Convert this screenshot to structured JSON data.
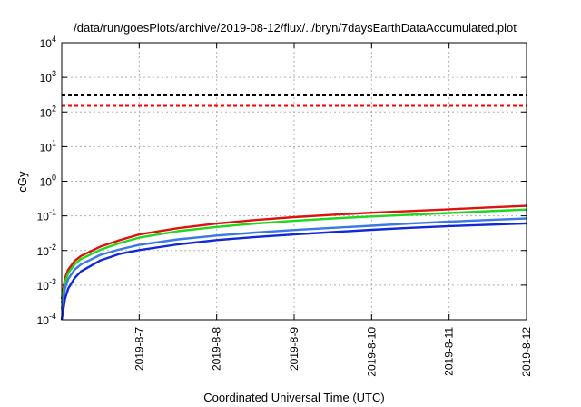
{
  "chart_data": {
    "type": "line",
    "title": "/data/run/goesPlots/archive/2019-08-12/flux/../bryn/7daysEarthDataAccumulated.plot",
    "xlabel": "Coordinated Universal Time (UTC)",
    "ylabel": "cGy",
    "x_scale": "time",
    "y_scale": "log",
    "xlim": [
      "2019-08-06T00:00:00",
      "2019-08-12T00:00:00"
    ],
    "ylim": [
      0.0001,
      10000
    ],
    "grid": true,
    "legend": "none",
    "x_ticks": [
      {
        "t": "2019-08-07T00:00:00",
        "label": "2019-8-7"
      },
      {
        "t": "2019-08-08T00:00:00",
        "label": "2019-8-8"
      },
      {
        "t": "2019-08-09T00:00:00",
        "label": "2019-8-9"
      },
      {
        "t": "2019-08-10T00:00:00",
        "label": "2019-8-10"
      },
      {
        "t": "2019-08-11T00:00:00",
        "label": "2019-8-11"
      },
      {
        "t": "2019-08-12T00:00:00",
        "label": "2019-8-12"
      }
    ],
    "y_ticks": [
      {
        "v": 0.0001,
        "base": "10",
        "exp": "-4"
      },
      {
        "v": 0.001,
        "base": "10",
        "exp": "-3"
      },
      {
        "v": 0.01,
        "base": "10",
        "exp": "-2"
      },
      {
        "v": 0.1,
        "base": "10",
        "exp": "-1"
      },
      {
        "v": 1,
        "base": "10",
        "exp": "0"
      },
      {
        "v": 10,
        "base": "10",
        "exp": "1"
      },
      {
        "v": 100,
        "base": "10",
        "exp": "2"
      },
      {
        "v": 1000,
        "base": "10",
        "exp": "3"
      },
      {
        "v": 10000,
        "base": "10",
        "exp": "4"
      }
    ],
    "thresholds": [
      {
        "value": 300,
        "color": "#000000",
        "style": "dashed"
      },
      {
        "value": 150,
        "color": "#ff0000",
        "style": "dashed"
      }
    ],
    "series": [
      {
        "color": "#e01010",
        "x": [
          "2019-08-06T00:00:00",
          "2019-08-06T01:00:00",
          "2019-08-06T02:00:00",
          "2019-08-06T04:00:00",
          "2019-08-06T06:00:00",
          "2019-08-06T12:00:00",
          "2019-08-06T18:00:00",
          "2019-08-07T00:00:00",
          "2019-08-07T12:00:00",
          "2019-08-08T00:00:00",
          "2019-08-08T12:00:00",
          "2019-08-09T00:00:00",
          "2019-08-09T12:00:00",
          "2019-08-10T00:00:00",
          "2019-08-10T12:00:00",
          "2019-08-11T00:00:00",
          "2019-08-11T12:00:00",
          "2019-08-12T00:00:00"
        ],
        "y": [
          0.0004,
          0.0016,
          0.0028,
          0.005,
          0.007,
          0.013,
          0.02,
          0.029,
          0.044,
          0.06,
          0.076,
          0.092,
          0.108,
          0.123,
          0.138,
          0.155,
          0.175,
          0.195
        ]
      },
      {
        "color": "#1ed81e",
        "x": [
          "2019-08-06T00:00:00",
          "2019-08-06T01:00:00",
          "2019-08-06T02:00:00",
          "2019-08-06T04:00:00",
          "2019-08-06T06:00:00",
          "2019-08-06T12:00:00",
          "2019-08-06T18:00:00",
          "2019-08-07T00:00:00",
          "2019-08-07T12:00:00",
          "2019-08-08T00:00:00",
          "2019-08-08T12:00:00",
          "2019-08-09T00:00:00",
          "2019-08-09T12:00:00",
          "2019-08-10T00:00:00",
          "2019-08-10T12:00:00",
          "2019-08-11T00:00:00",
          "2019-08-11T12:00:00",
          "2019-08-12T00:00:00"
        ],
        "y": [
          0.0003,
          0.0012,
          0.0022,
          0.004,
          0.0057,
          0.0105,
          0.0165,
          0.0235,
          0.036,
          0.048,
          0.06,
          0.072,
          0.084,
          0.096,
          0.108,
          0.121,
          0.136,
          0.152
        ]
      },
      {
        "color": "#3a78e8",
        "x": [
          "2019-08-06T00:00:00",
          "2019-08-06T01:00:00",
          "2019-08-06T02:00:00",
          "2019-08-06T04:00:00",
          "2019-08-06T06:00:00",
          "2019-08-06T12:00:00",
          "2019-08-06T18:00:00",
          "2019-08-07T00:00:00",
          "2019-08-07T12:00:00",
          "2019-08-08T00:00:00",
          "2019-08-08T12:00:00",
          "2019-08-09T00:00:00",
          "2019-08-09T12:00:00",
          "2019-08-10T00:00:00",
          "2019-08-10T12:00:00",
          "2019-08-11T00:00:00",
          "2019-08-11T12:00:00",
          "2019-08-12T00:00:00"
        ],
        "y": [
          0.0002,
          0.0008,
          0.0015,
          0.0028,
          0.004,
          0.0075,
          0.0108,
          0.0145,
          0.021,
          0.027,
          0.033,
          0.039,
          0.045,
          0.052,
          0.06,
          0.068,
          0.076,
          0.084
        ]
      },
      {
        "color": "#1028d8",
        "x": [
          "2019-08-06T00:00:00",
          "2019-08-06T00:30:00",
          "2019-08-06T01:00:00",
          "2019-08-06T02:00:00",
          "2019-08-06T04:00:00",
          "2019-08-06T06:00:00",
          "2019-08-06T12:00:00",
          "2019-08-06T18:00:00",
          "2019-08-07T00:00:00",
          "2019-08-07T12:00:00",
          "2019-08-08T00:00:00",
          "2019-08-08T12:00:00",
          "2019-08-09T00:00:00",
          "2019-08-09T12:00:00",
          "2019-08-10T00:00:00",
          "2019-08-10T12:00:00",
          "2019-08-11T00:00:00",
          "2019-08-11T12:00:00",
          "2019-08-12T00:00:00"
        ],
        "y": [
          0.0001,
          0.0002,
          0.0004,
          0.0008,
          0.0016,
          0.0025,
          0.0052,
          0.008,
          0.0103,
          0.015,
          0.02,
          0.0245,
          0.029,
          0.034,
          0.0395,
          0.045,
          0.0505,
          0.0555,
          0.0605
        ]
      }
    ]
  }
}
